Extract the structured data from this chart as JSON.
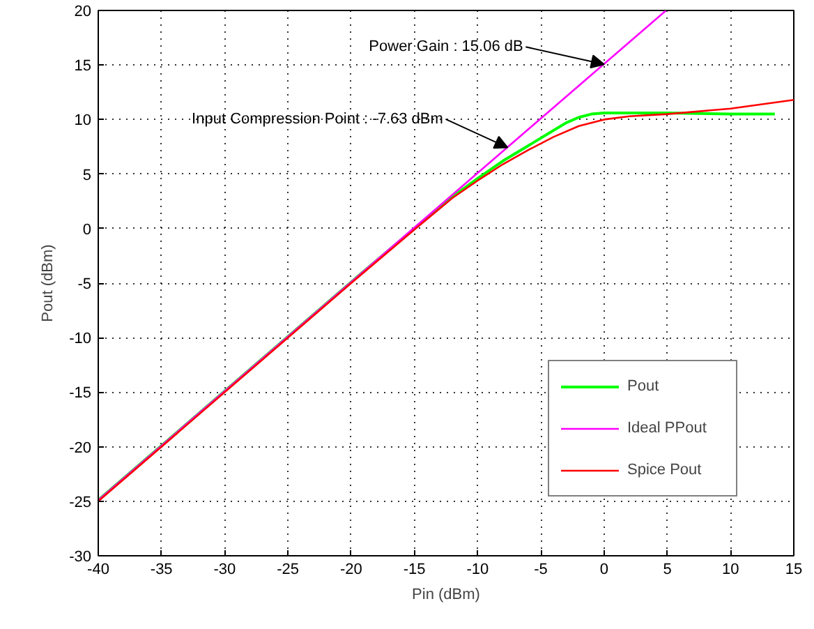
{
  "chart_data": {
    "type": "line",
    "xlabel": "Pin (dBm)",
    "ylabel": "Pout (dBm)",
    "xlim": [
      -40,
      15
    ],
    "ylim": [
      -30,
      20
    ],
    "xticks": [
      -40,
      -35,
      -30,
      -25,
      -20,
      -15,
      -10,
      -5,
      0,
      5,
      10,
      15
    ],
    "yticks": [
      -30,
      -25,
      -20,
      -15,
      -10,
      -5,
      0,
      5,
      10,
      15,
      20
    ],
    "grid": true,
    "legend": "bottom right",
    "line_style": "solid",
    "marker": "none",
    "series": [
      {
        "name": "Pout",
        "color": "#00ff00",
        "x": [
          -40,
          -30,
          -20,
          -15,
          -12,
          -10,
          -8,
          -6,
          -4,
          -3,
          -2,
          -1,
          0,
          5,
          10,
          13.5
        ],
        "values": [
          -24.9,
          -14.9,
          -4.9,
          0.0,
          2.9,
          4.6,
          6.2,
          7.6,
          9.0,
          9.7,
          10.2,
          10.5,
          10.6,
          10.6,
          10.5,
          10.5
        ]
      },
      {
        "name": "Ideal PPout",
        "color": "#ff00ff",
        "x": [
          -40,
          4.9
        ],
        "values": [
          -24.9,
          20
        ]
      },
      {
        "name": "Spice Pout",
        "color": "#ff0000",
        "x": [
          -40,
          -20,
          -15,
          -12,
          -10,
          -8,
          -6,
          -4,
          -2,
          0,
          2,
          5,
          10,
          15
        ],
        "values": [
          -25,
          -5,
          -0.1,
          2.8,
          4.4,
          5.9,
          7.2,
          8.4,
          9.4,
          10.0,
          10.3,
          10.5,
          11.0,
          11.8
        ]
      }
    ],
    "annotations": [
      {
        "text": "Power Gain : 15.06 dB",
        "x": 0,
        "y": 15.06
      },
      {
        "text": "Input Compression Point : -7.63 dBm",
        "x": -7.63,
        "y": 7.43
      }
    ]
  }
}
